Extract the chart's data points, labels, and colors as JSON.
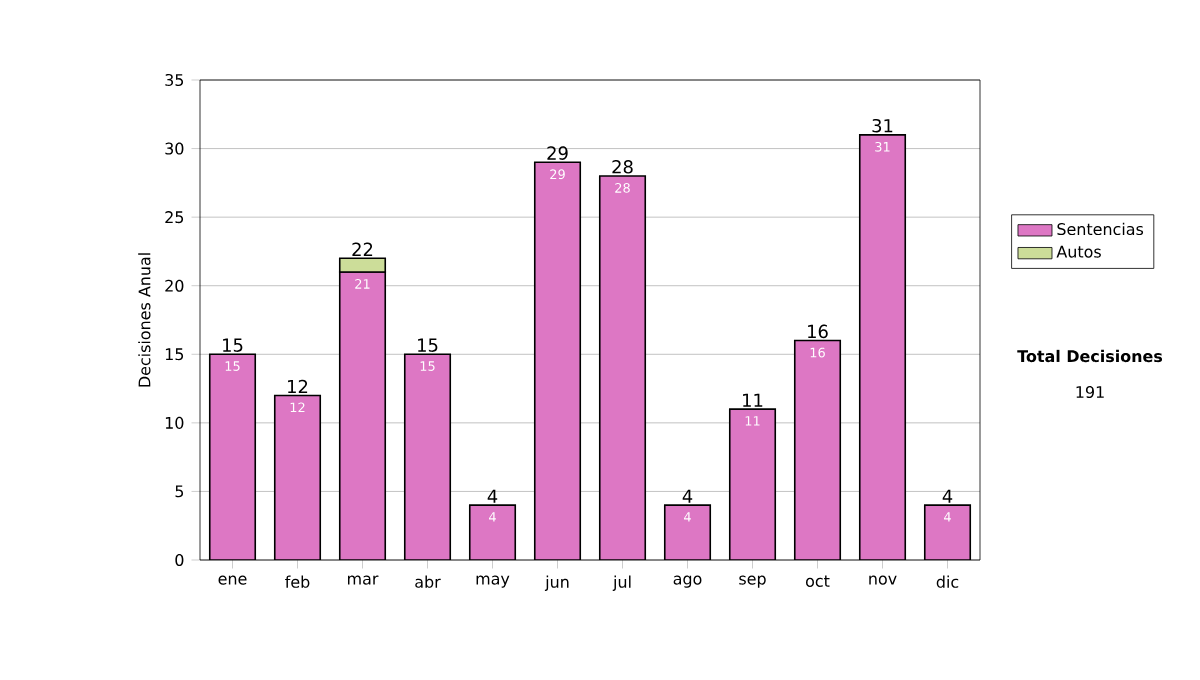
{
  "chart_data": {
    "type": "bar",
    "stacked": true,
    "ylabel": "Decisiones Anual",
    "categories": [
      "ene",
      "feb",
      "mar",
      "abr",
      "may",
      "jun",
      "jul",
      "ago",
      "sep",
      "oct",
      "nov",
      "dic"
    ],
    "series": [
      {
        "name": "Sentencias",
        "color": "#dd77c4",
        "values": [
          15,
          12,
          21,
          15,
          4,
          29,
          28,
          4,
          11,
          16,
          31,
          4
        ],
        "value_labels": [
          "15",
          "12",
          "21",
          "15",
          "4",
          "29",
          "28",
          "4",
          "11",
          "16",
          "31",
          "4"
        ]
      },
      {
        "name": "Autos",
        "color": "#ccdd99",
        "values": [
          null,
          null,
          1,
          null,
          null,
          null,
          null,
          null,
          null,
          null,
          null,
          null
        ]
      }
    ],
    "totals": [
      "15",
      "12",
      "22",
      "15",
      "4",
      "29",
      "28",
      "4",
      "11",
      "16",
      "31",
      "4"
    ],
    "ylim": [
      0,
      35
    ],
    "yticks": [
      0,
      5,
      10,
      15,
      20,
      25,
      30,
      35
    ],
    "grid": "y",
    "legend": "right",
    "annotations": [
      "Total Decisiones",
      "191"
    ]
  }
}
